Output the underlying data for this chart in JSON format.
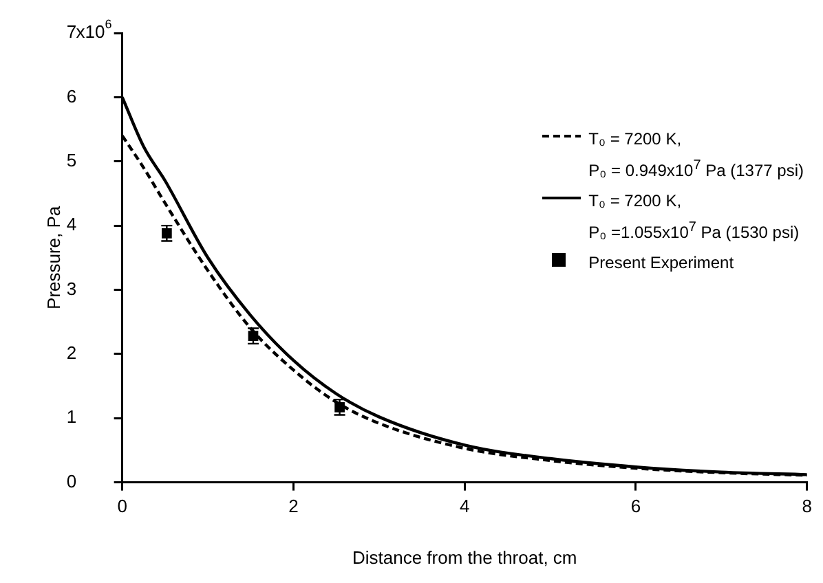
{
  "chart_data": {
    "type": "line",
    "xlabel": "Distance from the throat, cm",
    "ylabel": "Pressure, Pa",
    "xlim": [
      0,
      8
    ],
    "xticks": [
      0,
      2,
      4,
      6,
      8
    ],
    "ylim": [
      0,
      7
    ],
    "yticks": [
      0,
      1,
      2,
      3,
      4,
      5,
      6,
      7
    ],
    "annotations": [
      "x10$^{6}$"
    ],
    "grid": false,
    "legend": "top right",
    "series": [
      {
        "name": "T₀ = 7200 K,\nP₀ = 0.949x10$^{7}$ Pa (1377 psi)",
        "type": "line",
        "line_style": "dashed",
        "marker": "none",
        "color": "#000000",
        "x": [
          0,
          0.25,
          0.5,
          1.0,
          1.5,
          2.0,
          2.5,
          3,
          4,
          5,
          6,
          7,
          8
        ],
        "values": [
          5.4,
          4.9,
          4.35,
          3.3,
          2.4,
          1.75,
          1.25,
          0.92,
          0.53,
          0.34,
          0.22,
          0.15,
          0.11
        ]
      },
      {
        "name": "T₀ = 7200 K,\nP₀ =1.055x10$^{7}$ Pa (1530 psi)",
        "type": "line",
        "line_style": "solid",
        "marker": "none",
        "color": "#000000",
        "x": [
          0,
          0.25,
          0.5,
          1.0,
          1.5,
          2.0,
          2.5,
          3,
          4,
          5,
          6,
          7,
          8
        ],
        "values": [
          6.0,
          5.23,
          4.7,
          3.5,
          2.6,
          1.9,
          1.38,
          1.02,
          0.58,
          0.37,
          0.24,
          0.16,
          0.12
        ]
      },
      {
        "name": "Present Experiment",
        "type": "scatter",
        "marker": "square",
        "color": "#000000",
        "x": [
          0.52,
          1.53,
          2.54
        ],
        "values": [
          3.88,
          2.28,
          1.17
        ],
        "errors": [
          0.12,
          0.12,
          0.12
        ]
      }
    ]
  }
}
